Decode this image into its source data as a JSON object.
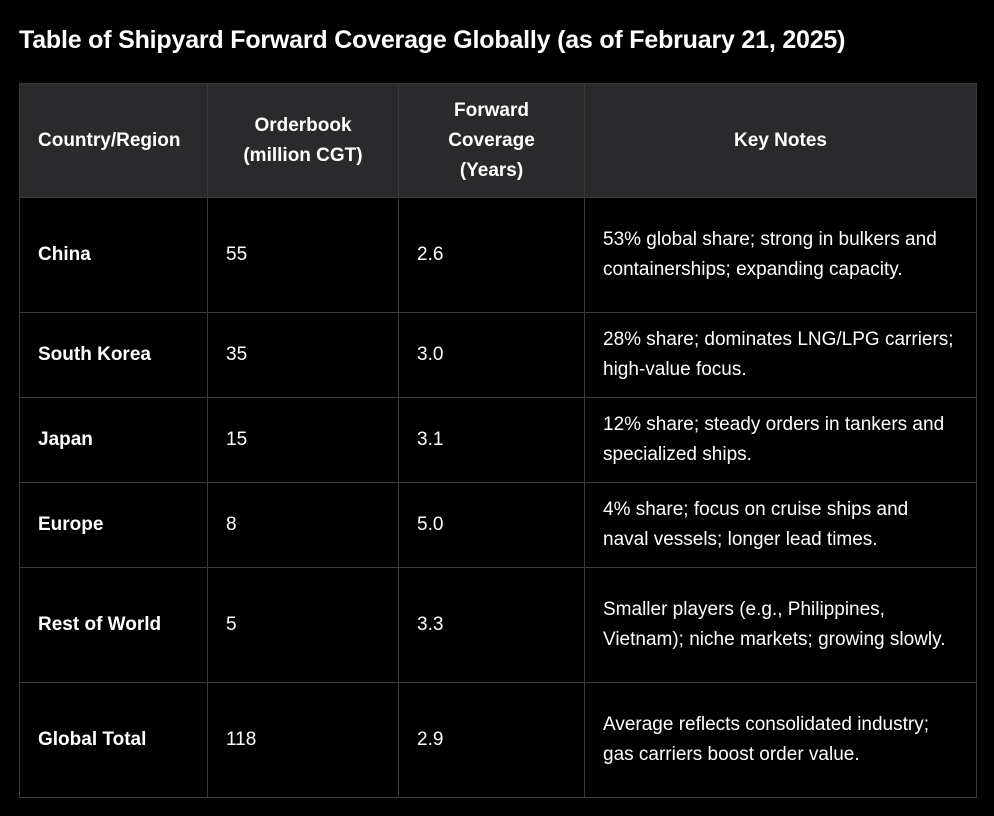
{
  "title": "Table of Shipyard Forward Coverage Globally (as of February 21, 2025)",
  "table": {
    "headers": [
      "Country/Region",
      "Orderbook (million CGT)",
      "Forward Coverage (Years)",
      "Key Notes"
    ],
    "rows": [
      [
        "China",
        "55",
        "2.6",
        "53% global share; strong in bulkers and containerships; expanding capacity."
      ],
      [
        "South Korea",
        "35",
        "3.0",
        "28% share; dominates LNG/LPG carriers; high-value focus."
      ],
      [
        "Japan",
        "15",
        "3.1",
        "12% share; steady orders in tankers and specialized ships."
      ],
      [
        "Europe",
        "8",
        "5.0",
        "4% share; focus on cruise ships and naval vessels; longer lead times."
      ],
      [
        "Rest of World",
        "5",
        "3.3",
        "Smaller players (e.g., Philippines, Vietnam); niche markets; growing slowly."
      ],
      [
        "Global Total",
        "118",
        "2.9",
        "Average reflects consolidated industry; gas carriers boost order value."
      ]
    ]
  },
  "colors": {
    "background": "#000000",
    "header_background": "#2a2a2c",
    "border": "#3a3a3a",
    "text": "#ffffff"
  }
}
